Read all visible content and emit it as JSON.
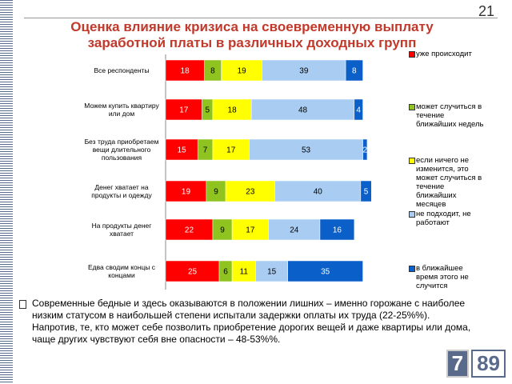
{
  "page_number": "21",
  "chart_data": {
    "type": "stacked-bar",
    "title": "Оценка влияние кризиса на своевременную выплату заработной платы в различных доходных групп",
    "categories": [
      "Все респонденты",
      "Можем купить квартиру или дом",
      "Без труда приобретаем вещи длительного пользования",
      "Денег хватает на продукты и одежду",
      "На продукты денег хватает",
      "Едва сводим концы с концами"
    ],
    "series": [
      {
        "name": "уже происходит",
        "color": "#ff0000",
        "values": [
          18,
          17,
          15,
          19,
          22,
          25
        ]
      },
      {
        "name": "может случиться в течение ближайших недель",
        "color": "#8fc31f",
        "values": [
          8,
          5,
          7,
          9,
          9,
          6
        ]
      },
      {
        "name": "если ничего не изменится, это может случиться в течение ближайших месяцев",
        "color": "#ffff00",
        "values": [
          19,
          18,
          17,
          23,
          17,
          11
        ]
      },
      {
        "name": "не подходит, не работают",
        "color": "#a9cdf2",
        "values": [
          39,
          48,
          53,
          40,
          24,
          15
        ]
      },
      {
        "name": "в ближайшее время этого не случится",
        "color": "#0a5fc8",
        "values": [
          8,
          4,
          2,
          5,
          16,
          35
        ]
      }
    ],
    "legend": "right"
  },
  "text": "Современные бедные и здесь оказываются в положении лишних – именно горожане с наиболее низким статусом в наибольшей степени испытали задержки оплаты их труда (22-25%%). Напротив, те, кто может себе позволить приобретение дорогих вещей и даже квартиры или дома, чаще других чувствуют себя вне опасности – 48-53%%.",
  "logo": [
    "7",
    "89"
  ]
}
